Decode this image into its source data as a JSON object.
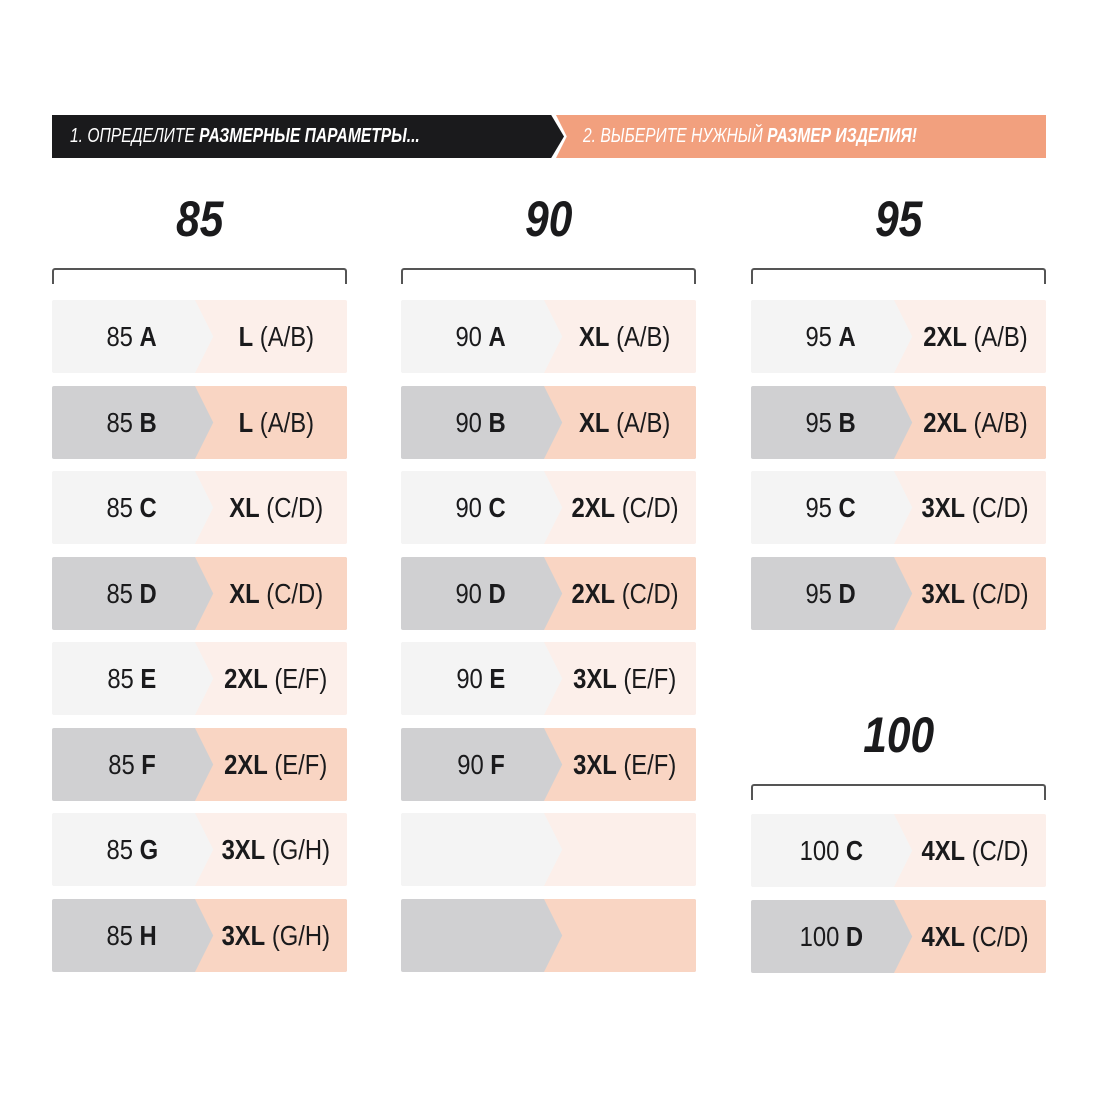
{
  "header": {
    "step1_light": "1. ОПРЕДЕЛИТЕ ",
    "step1_bold": "РАЗМЕРНЫЕ ПАРАМЕТРЫ...",
    "step2_light": "2. ВЫБЕРИТЕ НУЖНЫЙ ",
    "step2_bold": "РАЗМЕР ИЗДЕЛИЯ!"
  },
  "colors": {
    "dark": "#1a1a1c",
    "accent": "#f2a07e",
    "row_light_left": "#f4f4f4",
    "row_light_right": "#fcefea",
    "row_dark_left": "#d0d0d2",
    "row_dark_right": "#f9d5c3"
  },
  "groups": [
    {
      "heading": "85",
      "rows": [
        {
          "band": "85",
          "cup": "A",
          "size": "L",
          "cups": "(A/B)"
        },
        {
          "band": "85",
          "cup": "B",
          "size": "L",
          "cups": "(A/B)"
        },
        {
          "band": "85",
          "cup": "C",
          "size": "XL",
          "cups": "(C/D)"
        },
        {
          "band": "85",
          "cup": "D",
          "size": "XL",
          "cups": "(C/D)"
        },
        {
          "band": "85",
          "cup": "E",
          "size": "2XL",
          "cups": "(E/F)"
        },
        {
          "band": "85",
          "cup": "F",
          "size": "2XL",
          "cups": "(E/F)"
        },
        {
          "band": "85",
          "cup": "G",
          "size": "3XL",
          "cups": "(G/H)"
        },
        {
          "band": "85",
          "cup": "H",
          "size": "3XL",
          "cups": "(G/H)"
        }
      ]
    },
    {
      "heading": "90",
      "rows": [
        {
          "band": "90",
          "cup": "A",
          "size": "XL",
          "cups": "(A/B)"
        },
        {
          "band": "90",
          "cup": "B",
          "size": "XL",
          "cups": "(A/B)"
        },
        {
          "band": "90",
          "cup": "C",
          "size": "2XL",
          "cups": "(C/D)"
        },
        {
          "band": "90",
          "cup": "D",
          "size": "2XL",
          "cups": "(C/D)"
        },
        {
          "band": "90",
          "cup": "E",
          "size": "3XL",
          "cups": "(E/F)"
        },
        {
          "band": "90",
          "cup": "F",
          "size": "3XL",
          "cups": "(E/F)"
        },
        {
          "band": "",
          "cup": "",
          "size": "",
          "cups": ""
        },
        {
          "band": "",
          "cup": "",
          "size": "",
          "cups": ""
        }
      ]
    },
    {
      "heading": "95",
      "rows": [
        {
          "band": "95",
          "cup": "A",
          "size": "2XL",
          "cups": "(A/B)"
        },
        {
          "band": "95",
          "cup": "B",
          "size": "2XL",
          "cups": "(A/B)"
        },
        {
          "band": "95",
          "cup": "C",
          "size": "3XL",
          "cups": "(C/D)"
        },
        {
          "band": "95",
          "cup": "D",
          "size": "3XL",
          "cups": "(C/D)"
        }
      ]
    },
    {
      "heading": "100",
      "rows": [
        {
          "band": "100",
          "cup": "C",
          "size": "4XL",
          "cups": "(C/D)"
        },
        {
          "band": "100",
          "cup": "D",
          "size": "4XL",
          "cups": "(C/D)"
        }
      ]
    }
  ]
}
